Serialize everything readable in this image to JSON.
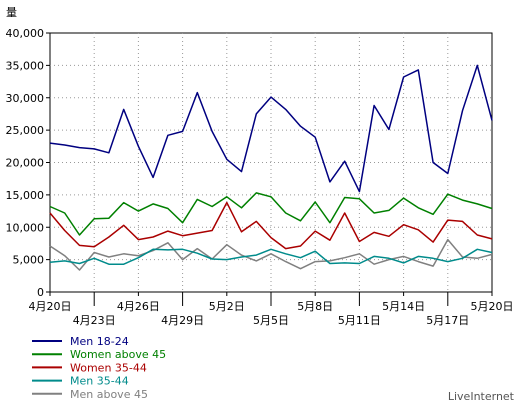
{
  "chart_data": {
    "type": "line",
    "ylabel": "量",
    "ylim": [
      0,
      40000
    ],
    "yticks": [
      "0",
      "5,000",
      "10,000",
      "15,000",
      "20,000",
      "25,000",
      "30,000",
      "35,000",
      "40,000"
    ],
    "grid": true,
    "legend_position": "bottom-left",
    "x_tick_labels": [
      {
        "index": 0,
        "label": "4月20日",
        "row": 0
      },
      {
        "index": 3,
        "label": "4月23日",
        "row": 1
      },
      {
        "index": 6,
        "label": "4月26日",
        "row": 0
      },
      {
        "index": 9,
        "label": "4月29日",
        "row": 1
      },
      {
        "index": 12,
        "label": "5月2日",
        "row": 0
      },
      {
        "index": 15,
        "label": "5月5日",
        "row": 1
      },
      {
        "index": 18,
        "label": "5月8日",
        "row": 0
      },
      {
        "index": 21,
        "label": "5月11日",
        "row": 1
      },
      {
        "index": 24,
        "label": "5月14日",
        "row": 0
      },
      {
        "index": 27,
        "label": "5月17日",
        "row": 1
      },
      {
        "index": 30,
        "label": "5月20日",
        "row": 0
      }
    ],
    "series": [
      {
        "name": "Men 18-24",
        "color": "#000080",
        "values": [
          23000,
          22700,
          22300,
          22100,
          21500,
          28200,
          22500,
          17700,
          24200,
          24800,
          30800,
          24800,
          20500,
          18600,
          27500,
          30100,
          28200,
          25600,
          23900,
          17000,
          20200,
          15500,
          28800,
          25100,
          33200,
          34300,
          20000,
          18300,
          28000,
          35000,
          26500
        ]
      },
      {
        "name": "Women above 45",
        "color": "#008000",
        "values": [
          13200,
          12200,
          8800,
          11300,
          11400,
          13800,
          12500,
          13600,
          12900,
          10700,
          14300,
          13200,
          14700,
          13000,
          15300,
          14700,
          12200,
          11000,
          13900,
          10700,
          14600,
          14400,
          12200,
          12600,
          14500,
          13000,
          12000,
          15100,
          14200,
          13600,
          12900
        ]
      },
      {
        "name": "Women 35-44",
        "color": "#aa0000",
        "values": [
          12200,
          9500,
          7200,
          7000,
          8500,
          10300,
          8100,
          8500,
          9400,
          8700,
          9100,
          9500,
          13800,
          9300,
          10900,
          8400,
          6700,
          7100,
          9400,
          8000,
          12200,
          7800,
          9200,
          8600,
          10400,
          9600,
          7700,
          11100,
          10900,
          8800,
          8200
        ]
      },
      {
        "name": "Men 35-44",
        "color": "#008b8b",
        "values": [
          4600,
          4800,
          4400,
          5200,
          4300,
          4300,
          5300,
          6600,
          6500,
          6600,
          6000,
          5100,
          5000,
          5400,
          5700,
          6600,
          5900,
          5300,
          6300,
          4400,
          4500,
          4400,
          5500,
          5200,
          4500,
          5500,
          5200,
          4700,
          5200,
          6600,
          6100
        ]
      },
      {
        "name": "Men above 45",
        "color": "#808080",
        "values": [
          7100,
          5600,
          3400,
          6100,
          5400,
          5900,
          5600,
          6400,
          7600,
          5000,
          6700,
          5100,
          7300,
          5700,
          4800,
          5900,
          4700,
          3600,
          4700,
          4800,
          5300,
          5900,
          4300,
          5000,
          5500,
          4700,
          4000,
          8100,
          5400,
          5200,
          5800
        ]
      }
    ]
  },
  "credit": "LiveInternet"
}
